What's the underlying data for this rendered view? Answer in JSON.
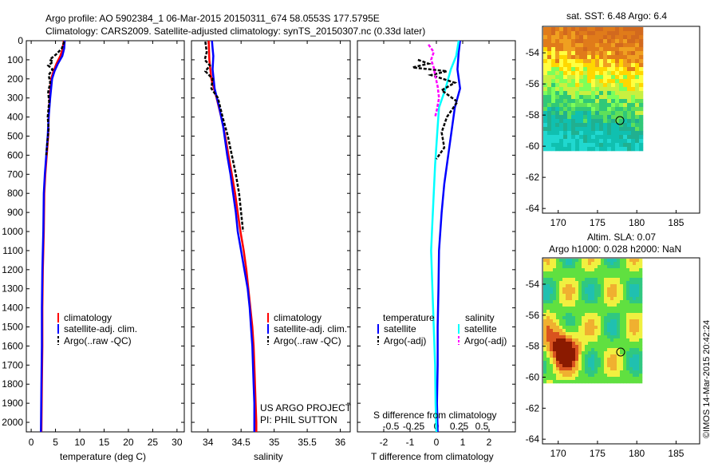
{
  "header": {
    "line1": "Argo profile: AO 5902384_1 06-Mar-2015 20150311_674 58.0553S 177.5795E",
    "line2": "Climatology: CARS2009. Satellite-adjusted climatology: synTS_20150307.nc (0.33d later)"
  },
  "colors": {
    "climatology": "#ff0000",
    "satellite": "#0000ff",
    "argo": "#000000",
    "sat_salinity": "#00ffff",
    "argo_salinity": "#ff00ff"
  },
  "chart_data": [
    {
      "id": "temperature",
      "type": "line",
      "xlabel": "temperature (deg C)",
      "ylabel": "",
      "xlim": [
        -1,
        31.5
      ],
      "ylim": [
        2050,
        0
      ],
      "xticks": [
        0,
        5,
        10,
        15,
        20,
        25,
        30
      ],
      "yticks": [
        0,
        100,
        200,
        300,
        400,
        500,
        600,
        700,
        800,
        900,
        1000,
        1100,
        1200,
        1300,
        1400,
        1500,
        1600,
        1700,
        1800,
        1900,
        2000
      ],
      "legend": [
        "climatology",
        "satellite-adj. clim.",
        "Argo(..raw -QC)"
      ],
      "series": [
        {
          "name": "climatology",
          "color": "#ff0000",
          "style": "solid",
          "points": [
            [
              6.7,
              0
            ],
            [
              6.5,
              40
            ],
            [
              6.0,
              80
            ],
            [
              5.2,
              120
            ],
            [
              4.6,
              160
            ],
            [
              4.1,
              200
            ],
            [
              3.8,
              300
            ],
            [
              3.6,
              400
            ],
            [
              3.5,
              500
            ],
            [
              3.2,
              600
            ],
            [
              2.9,
              700
            ],
            [
              2.7,
              800
            ],
            [
              2.6,
              1000
            ],
            [
              2.4,
              1200
            ],
            [
              2.3,
              1400
            ],
            [
              2.3,
              1600
            ],
            [
              2.2,
              1800
            ],
            [
              2.1,
              2050
            ]
          ]
        },
        {
          "name": "satellite-adj. clim.",
          "color": "#0000ff",
          "style": "solid",
          "points": [
            [
              6.9,
              0
            ],
            [
              6.8,
              40
            ],
            [
              6.4,
              80
            ],
            [
              5.5,
              120
            ],
            [
              4.8,
              160
            ],
            [
              4.3,
              200
            ],
            [
              3.9,
              300
            ],
            [
              3.6,
              400
            ],
            [
              3.4,
              500
            ],
            [
              3.1,
              600
            ],
            [
              2.8,
              700
            ],
            [
              2.6,
              800
            ],
            [
              2.5,
              1000
            ],
            [
              2.3,
              1200
            ],
            [
              2.2,
              1400
            ],
            [
              2.2,
              1600
            ],
            [
              2.1,
              1800
            ],
            [
              2.0,
              2050
            ]
          ]
        },
        {
          "name": "Argo(..raw -QC)",
          "color": "#000000",
          "style": "dash",
          "points": [
            [
              6.8,
              5
            ],
            [
              6.3,
              40
            ],
            [
              5.2,
              70
            ],
            [
              3.8,
              100
            ],
            [
              4.5,
              110
            ],
            [
              3.5,
              130
            ],
            [
              4.4,
              150
            ],
            [
              3.6,
              180
            ],
            [
              3.9,
              220
            ],
            [
              3.5,
              270
            ],
            [
              3.7,
              320
            ],
            [
              3.4,
              400
            ],
            [
              3.6,
              460
            ],
            [
              3.3,
              540
            ],
            [
              3.1,
              600
            ]
          ]
        }
      ]
    },
    {
      "id": "salinity",
      "type": "line",
      "xlabel": "salinity",
      "ylabel": "",
      "xlim": [
        33.75,
        36.15
      ],
      "ylim": [
        2050,
        0
      ],
      "xticks": [
        34,
        34.5,
        35,
        35.5,
        36
      ],
      "legend": [
        "climatology",
        "satellite-adj. clim.",
        "Argo(..raw -QC)"
      ],
      "series": [
        {
          "name": "climatology",
          "color": "#ff0000",
          "style": "solid",
          "points": [
            [
              34.01,
              0
            ],
            [
              34.02,
              100
            ],
            [
              34.05,
              200
            ],
            [
              34.13,
              300
            ],
            [
              34.2,
              400
            ],
            [
              34.26,
              500
            ],
            [
              34.31,
              600
            ],
            [
              34.36,
              700
            ],
            [
              34.41,
              800
            ],
            [
              34.45,
              900
            ],
            [
              34.49,
              1000
            ],
            [
              34.54,
              1100
            ],
            [
              34.58,
              1200
            ],
            [
              34.61,
              1300
            ],
            [
              34.64,
              1400
            ],
            [
              34.67,
              1500
            ],
            [
              34.69,
              1600
            ],
            [
              34.7,
              1700
            ],
            [
              34.71,
              1800
            ],
            [
              34.72,
              1900
            ],
            [
              34.73,
              2000
            ],
            [
              34.73,
              2050
            ]
          ]
        },
        {
          "name": "satellite-adj. clim.",
          "color": "#0000ff",
          "style": "solid",
          "points": [
            [
              34.06,
              0
            ],
            [
              34.07,
              40
            ],
            [
              34.08,
              80
            ],
            [
              34.07,
              150
            ],
            [
              34.1,
              250
            ],
            [
              34.17,
              350
            ],
            [
              34.23,
              450
            ],
            [
              34.29,
              600
            ],
            [
              34.34,
              700
            ],
            [
              34.38,
              800
            ],
            [
              34.42,
              900
            ],
            [
              34.45,
              1000
            ],
            [
              34.5,
              1100
            ],
            [
              34.55,
              1200
            ],
            [
              34.6,
              1300
            ],
            [
              34.63,
              1400
            ],
            [
              34.65,
              1500
            ],
            [
              34.67,
              1600
            ],
            [
              34.68,
              1700
            ],
            [
              34.69,
              1800
            ],
            [
              34.7,
              1900
            ],
            [
              34.7,
              2050
            ]
          ]
        },
        {
          "name": "Argo(..raw -QC)",
          "color": "#000000",
          "style": "dash",
          "points": [
            [
              33.96,
              5
            ],
            [
              33.98,
              60
            ],
            [
              33.95,
              100
            ],
            [
              34.03,
              130
            ],
            [
              33.96,
              160
            ],
            [
              34.07,
              200
            ],
            [
              34.05,
              250
            ],
            [
              34.15,
              300
            ],
            [
              34.22,
              400
            ],
            [
              34.3,
              500
            ],
            [
              34.36,
              600
            ],
            [
              34.42,
              700
            ],
            [
              34.47,
              800
            ],
            [
              34.5,
              900
            ],
            [
              34.53,
              1000
            ]
          ]
        }
      ]
    },
    {
      "id": "difference",
      "type": "line",
      "xlabel": "T difference from climatology",
      "xlabel_top": "S difference from climatology",
      "ylabel": "",
      "xlim": [
        -3,
        3
      ],
      "ylim": [
        2050,
        0
      ],
      "xticks": [
        -2,
        -1,
        0,
        1,
        2
      ],
      "sticks": [
        -0.5,
        -0.25,
        0,
        0.25,
        0.5
      ],
      "stick_labels": [
        "-0.5",
        "-0.25",
        "0",
        "0.25",
        "0.5"
      ],
      "legend_headers": [
        "temperature",
        "salinity"
      ],
      "legend": [
        "satellite",
        "Argo(-adj)",
        "satellite",
        "Argo(-adj)"
      ],
      "series": [
        {
          "name": "satellite",
          "group": "temperature",
          "color": "#0000ff",
          "style": "solid",
          "points": [
            [
              0.9,
              0
            ],
            [
              0.85,
              60
            ],
            [
              0.8,
              150
            ],
            [
              0.9,
              250
            ],
            [
              0.7,
              350
            ],
            [
              0.6,
              450
            ],
            [
              0.5,
              550
            ],
            [
              0.4,
              650
            ],
            [
              0.3,
              750
            ],
            [
              0.2,
              900
            ],
            [
              0.1,
              1100
            ],
            [
              0.08,
              1300
            ],
            [
              0.05,
              1500
            ],
            [
              0.05,
              1700
            ],
            [
              0.02,
              1900
            ],
            [
              0.05,
              2050
            ]
          ]
        },
        {
          "name": "satellite",
          "group": "salinity",
          "color": "#00ffff",
          "style": "solid",
          "points": [
            [
              0.85,
              0
            ],
            [
              0.75,
              80
            ],
            [
              0.55,
              150
            ],
            [
              0.35,
              250
            ],
            [
              0.1,
              350
            ],
            [
              0.05,
              450
            ],
            [
              0.0,
              550
            ],
            [
              -0.05,
              650
            ],
            [
              -0.1,
              800
            ],
            [
              -0.15,
              950
            ],
            [
              -0.2,
              1100
            ],
            [
              -0.15,
              1300
            ],
            [
              -0.1,
              1500
            ],
            [
              -0.05,
              1700
            ],
            [
              -0.03,
              1900
            ],
            [
              0.0,
              2050
            ]
          ]
        },
        {
          "name": "Argo(-adj)",
          "group": "temperature",
          "color": "#000000",
          "style": "dash",
          "points": [
            [
              -0.7,
              100
            ],
            [
              -0.3,
              120
            ],
            [
              -0.9,
              140
            ],
            [
              0.4,
              160
            ],
            [
              -0.2,
              180
            ],
            [
              0.7,
              220
            ],
            [
              0.2,
              260
            ],
            [
              0.8,
              320
            ],
            [
              0.4,
              400
            ],
            [
              0.2,
              480
            ],
            [
              0.3,
              560
            ],
            [
              0.0,
              620
            ]
          ]
        },
        {
          "name": "Argo(-adj)",
          "group": "salinity",
          "color": "#ff00ff",
          "style": "dash",
          "points": [
            [
              -0.3,
              20
            ],
            [
              -0.1,
              60
            ],
            [
              -0.2,
              100
            ],
            [
              -0.1,
              140
            ],
            [
              -0.05,
              180
            ],
            [
              0.05,
              240
            ],
            [
              0.1,
              300
            ],
            [
              0.02,
              360
            ],
            [
              -0.05,
              400
            ]
          ]
        }
      ]
    }
  ],
  "footer": {
    "credit1": "US ARGO PROJECT",
    "credit2": "PI: PHIL SUTTON",
    "timestamp": "©IMOS 14-Mar-2015 20:42:24"
  },
  "maps": [
    {
      "id": "sst-map",
      "title": "sat. SST: 6.48 Argo: 6.4",
      "xticks": [
        170,
        175,
        180,
        185
      ],
      "yticks": [
        -54,
        -56,
        -58,
        -60,
        -62,
        -64
      ],
      "xlim": [
        168,
        188
      ],
      "ylim": [
        -64.3,
        -52.3
      ],
      "profile_location": [
        177.58,
        -58.06
      ]
    },
    {
      "id": "sla-map",
      "title1": "Altim. SLA: 0.07",
      "title2": "Argo h1000: 0.028 h2000: NaN",
      "xticks": [
        170,
        175,
        180,
        185
      ],
      "yticks": [
        -54,
        -56,
        -58,
        -60,
        -62,
        -64
      ],
      "xlim": [
        168,
        188
      ],
      "ylim": [
        -64.3,
        -52.3
      ],
      "profile_location": [
        177.58,
        -58.06
      ]
    }
  ]
}
